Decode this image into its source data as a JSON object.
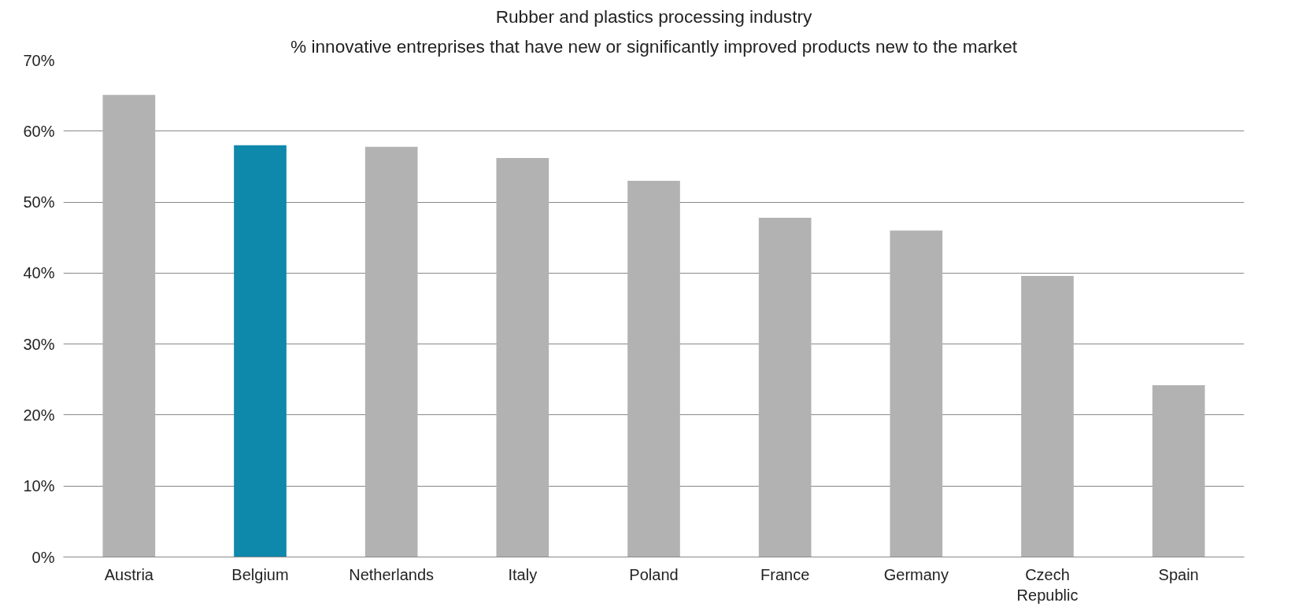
{
  "chart_data": {
    "type": "bar",
    "title": "Rubber and plastics processing industry",
    "subtitle": "% innovative entreprises that have new or significantly improved products new to the market",
    "categories": [
      "Austria",
      "Belgium",
      "Netherlands",
      "Italy",
      "Poland",
      "France",
      "Germany",
      "Czech Republic",
      "Spain"
    ],
    "values": [
      65.1,
      58,
      57.8,
      56.2,
      53,
      47.8,
      46,
      39.6,
      24.2
    ],
    "colors": [
      "#b2b2b2",
      "#0e88ab",
      "#b2b2b2",
      "#b2b2b2",
      "#b2b2b2",
      "#b2b2b2",
      "#b2b2b2",
      "#b2b2b2",
      "#b2b2b2"
    ],
    "ylim": [
      0,
      70
    ],
    "yticks": [
      {
        "value": 0,
        "label": "0%"
      },
      {
        "value": 10,
        "label": "10%"
      },
      {
        "value": 20,
        "label": "20%"
      },
      {
        "value": 30,
        "label": "30%"
      },
      {
        "value": 40,
        "label": "40%"
      },
      {
        "value": 50,
        "label": "50%"
      },
      {
        "value": 60,
        "label": "60%"
      },
      {
        "value": 70,
        "label": "70%"
      }
    ],
    "grid": "y"
  }
}
